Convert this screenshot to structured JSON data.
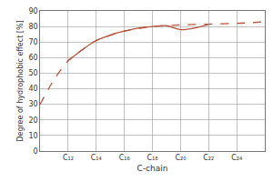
{
  "chart_data": {
    "type": "line",
    "x_label": "C-chain",
    "y_label": "Degree of hydrophobic effect [%]",
    "xlim": [
      10,
      26
    ],
    "xticks": [
      {
        "value": 12,
        "label": "C₁₂"
      },
      {
        "value": 14,
        "label": "C₁₄"
      },
      {
        "value": 16,
        "label": "C₁₆"
      },
      {
        "value": 18,
        "label": "C₁₈"
      },
      {
        "value": 20,
        "label": "C₂₀"
      },
      {
        "value": 22,
        "label": "C₂₂"
      },
      {
        "value": 24,
        "label": "C₂₄"
      }
    ],
    "ylim": [
      0,
      90
    ],
    "yticks": [
      0,
      10,
      20,
      30,
      40,
      50,
      60,
      70,
      80,
      90
    ],
    "grid": true,
    "series": [
      {
        "color": "#b5553c",
        "line_style": "dash",
        "x": [
          10,
          11,
          12,
          13,
          14,
          16,
          18,
          20,
          22,
          24,
          26
        ],
        "values": [
          30,
          46,
          58,
          65,
          71,
          77,
          80,
          81,
          81.5,
          82,
          83
        ]
      },
      {
        "color": "#b5553c",
        "line_style": "solid",
        "x": [
          12,
          13,
          14,
          15,
          16,
          17,
          18,
          19,
          20,
          21,
          22
        ],
        "values": [
          58,
          65,
          71,
          74.5,
          77,
          79,
          80,
          80.5,
          78,
          79,
          81.5
        ]
      }
    ]
  }
}
